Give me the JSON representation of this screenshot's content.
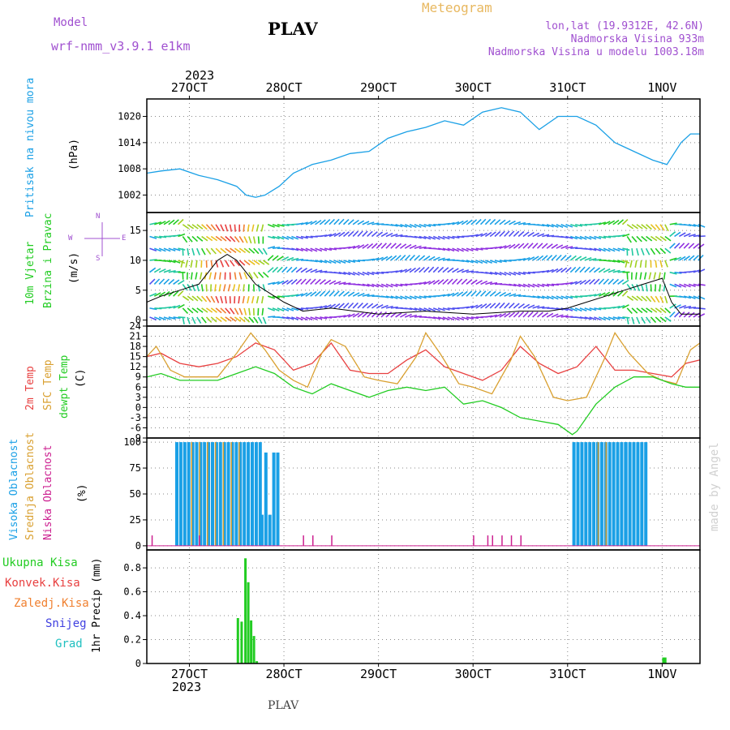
{
  "header": {
    "model_label": "Model",
    "model_value": "wrf-nmm_v3.9.1 e1km",
    "station": "PLAV",
    "meteogram": "Meteogram",
    "coords": "lon,lat (19.9312E, 42.6N)",
    "altitude": "Nadmorska Visina 933m",
    "model_altitude": "Nadmorska Visina u modelu 1003.18m",
    "top_year": "2023",
    "bottom_year": "2023",
    "footer_station": "PLAV",
    "watermark": "made by Angel"
  },
  "colors": {
    "pressure": "#1aa0e6",
    "temp2m": "#e84040",
    "sfc": "#d9a030",
    "dewpt": "#22cc22",
    "high_cloud": "#1aa0e6",
    "mid_cloud": "#d9a030",
    "low_cloud": "#cc2090",
    "total_precip": "#22cc22",
    "conv_precip": "#e84040",
    "grid_precip": "#f08030",
    "snow": "#4040e0",
    "hail": "#20c0c0",
    "label_purple": "#a050d0"
  },
  "panel_labels": {
    "pressure": [
      "Pritisak na nivou mora",
      "(hPa)"
    ],
    "wind": [
      "10m Vjetar",
      "Brzina i Pravac",
      "(m/s)"
    ],
    "temp": [
      "2m Temp",
      "SFC Temp",
      "dewpt Temp",
      "(C)"
    ],
    "cloud": [
      "Visoka Oblacnost",
      "Srednja Oblacnost",
      "Niska Oblacnost",
      "(%)"
    ],
    "precip_axis": "1hr Precip (mm)",
    "precip_legend": [
      "Ukupna Kisa",
      "Konvek.Kisa",
      "Zaledj.Kisa",
      "Snijeg",
      "Grad"
    ],
    "compass": [
      "N",
      "S",
      "W",
      "E"
    ]
  },
  "chart_data": {
    "type": "line",
    "x_days": [
      "27OCT",
      "28OCT",
      "29OCT",
      "30OCT",
      "31OCT",
      "1NOV"
    ],
    "x_range_days": [
      -0.45,
      5.4
    ],
    "panels": {
      "pressure": {
        "ylim": [
          998,
          1024
        ],
        "yticks": [
          1002,
          1008,
          1014,
          1020
        ],
        "x": [
          -0.45,
          -0.3,
          -0.1,
          0.1,
          0.3,
          0.5,
          0.6,
          0.7,
          0.8,
          0.95,
          1.1,
          1.3,
          1.5,
          1.7,
          1.9,
          2.1,
          2.3,
          2.5,
          2.7,
          2.9,
          3.1,
          3.3,
          3.5,
          3.7,
          3.9,
          4.1,
          4.3,
          4.5,
          4.7,
          4.9,
          5.05,
          5.2,
          5.3,
          5.4
        ],
        "y": [
          1007,
          1007.5,
          1008,
          1006.5,
          1005.5,
          1004,
          1002,
          1001.5,
          1002,
          1004,
          1007,
          1009,
          1010,
          1011.5,
          1012,
          1015,
          1016.5,
          1017.5,
          1019,
          1018,
          1021,
          1022,
          1021,
          1017,
          1020,
          1020,
          1018,
          1014,
          1012,
          1010,
          1009,
          1014,
          1016,
          1016
        ],
        "name": "Pritisak na nivou mora"
      },
      "wind": {
        "ylim": [
          -1,
          18
        ],
        "yticks": [
          0,
          5,
          10,
          15
        ],
        "speed": {
          "x": [
            -0.45,
            -0.3,
            -0.1,
            0.1,
            0.2,
            0.3,
            0.4,
            0.5,
            0.6,
            0.7,
            0.8,
            0.9,
            1.0,
            1.2,
            1.5,
            2.0,
            2.5,
            3.0,
            3.5,
            3.8,
            4.0,
            4.2,
            4.4,
            4.6,
            4.8,
            5.0,
            5.1,
            5.2,
            5.3,
            5.4
          ],
          "y": [
            3,
            4,
            5,
            6,
            8,
            10,
            11,
            10,
            8,
            6,
            5,
            4,
            3,
            1.5,
            2,
            1,
            1.5,
            1,
            1.5,
            1.5,
            2,
            3,
            4,
            5,
            6,
            7,
            3,
            1,
            1,
            1
          ]
        }
      },
      "temp": {
        "ylim": [
          -9,
          24
        ],
        "yticks": [
          -9,
          -6,
          -3,
          0,
          3,
          6,
          9,
          12,
          15,
          18,
          21,
          24
        ],
        "t2m": {
          "x": [
            -0.45,
            -0.3,
            -0.1,
            0.1,
            0.3,
            0.5,
            0.7,
            0.9,
            1.1,
            1.3,
            1.5,
            1.7,
            1.9,
            2.1,
            2.3,
            2.5,
            2.7,
            2.9,
            3.1,
            3.3,
            3.5,
            3.7,
            3.9,
            4.1,
            4.3,
            4.5,
            4.7,
            4.9,
            5.1,
            5.25,
            5.4
          ],
          "y": [
            15,
            16,
            13,
            12,
            13,
            15,
            19,
            17,
            11,
            13,
            19,
            11,
            10,
            10,
            14,
            17,
            12,
            10,
            8,
            11,
            18,
            13,
            10,
            12,
            18,
            11,
            11,
            10,
            9,
            13,
            14
          ]
        },
        "sfc": {
          "x": [
            -0.45,
            -0.35,
            -0.2,
            -0.05,
            0.1,
            0.3,
            0.5,
            0.65,
            0.8,
            0.95,
            1.1,
            1.25,
            1.4,
            1.5,
            1.65,
            1.85,
            2.0,
            2.2,
            2.4,
            2.5,
            2.65,
            2.85,
            3.0,
            3.2,
            3.4,
            3.5,
            3.65,
            3.85,
            4.0,
            4.2,
            4.4,
            4.5,
            4.65,
            4.85,
            5.0,
            5.15,
            5.3,
            5.4
          ],
          "y": [
            15,
            18,
            11,
            9,
            9,
            9,
            16,
            22,
            17,
            11,
            8,
            6,
            16,
            20,
            18,
            9,
            8,
            7,
            15,
            22,
            16,
            7,
            6,
            4,
            14,
            21,
            15,
            3,
            2,
            3,
            15,
            22,
            16,
            10,
            8,
            7,
            17,
            19
          ]
        },
        "dewpt": {
          "x": [
            -0.45,
            -0.3,
            -0.1,
            0.1,
            0.3,
            0.5,
            0.7,
            0.9,
            1.1,
            1.3,
            1.5,
            1.7,
            1.9,
            2.1,
            2.3,
            2.5,
            2.7,
            2.9,
            3.1,
            3.3,
            3.5,
            3.7,
            3.9,
            4.05,
            4.1,
            4.3,
            4.5,
            4.7,
            4.9,
            5.1,
            5.25,
            5.4
          ],
          "y": [
            9,
            10,
            8,
            8,
            8,
            10,
            12,
            10,
            6,
            4,
            7,
            5,
            3,
            5,
            6,
            5,
            6,
            1,
            2,
            0,
            -3,
            -4,
            -5,
            -8,
            -7,
            1,
            6,
            9,
            9,
            7,
            6,
            6
          ]
        }
      },
      "cloud": {
        "ylim": [
          -4,
          104
        ],
        "yticks": [
          0,
          25,
          50,
          75,
          100
        ],
        "high_days": [
          [
            -0.15,
            0.75
          ],
          [
            0.75,
            0.95
          ],
          [
            4.05,
            4.6
          ],
          [
            4.6,
            4.85
          ]
        ],
        "mid_days": [
          [
            0.0,
            0.55
          ],
          [
            4.3,
            4.4
          ]
        ],
        "low_spikes_x": [
          -0.4,
          0.1,
          1.2,
          1.3,
          1.5,
          3.0,
          3.15,
          3.2,
          3.3,
          3.4,
          3.5
        ]
      },
      "precip": {
        "ylim": [
          0,
          0.95
        ],
        "yticks": [
          0,
          0.2,
          0.4,
          0.6,
          0.8
        ],
        "bars": [
          {
            "x": 0.5,
            "v": 0.38
          },
          {
            "x": 0.54,
            "v": 0.35
          },
          {
            "x": 0.58,
            "v": 0.88
          },
          {
            "x": 0.61,
            "v": 0.68
          },
          {
            "x": 0.64,
            "v": 0.36
          },
          {
            "x": 0.67,
            "v": 0.23
          },
          {
            "x": 0.7,
            "v": 0.02
          },
          {
            "x": 5.0,
            "v": 0.05
          },
          {
            "x": 5.02,
            "v": 0.05
          }
        ]
      }
    }
  }
}
